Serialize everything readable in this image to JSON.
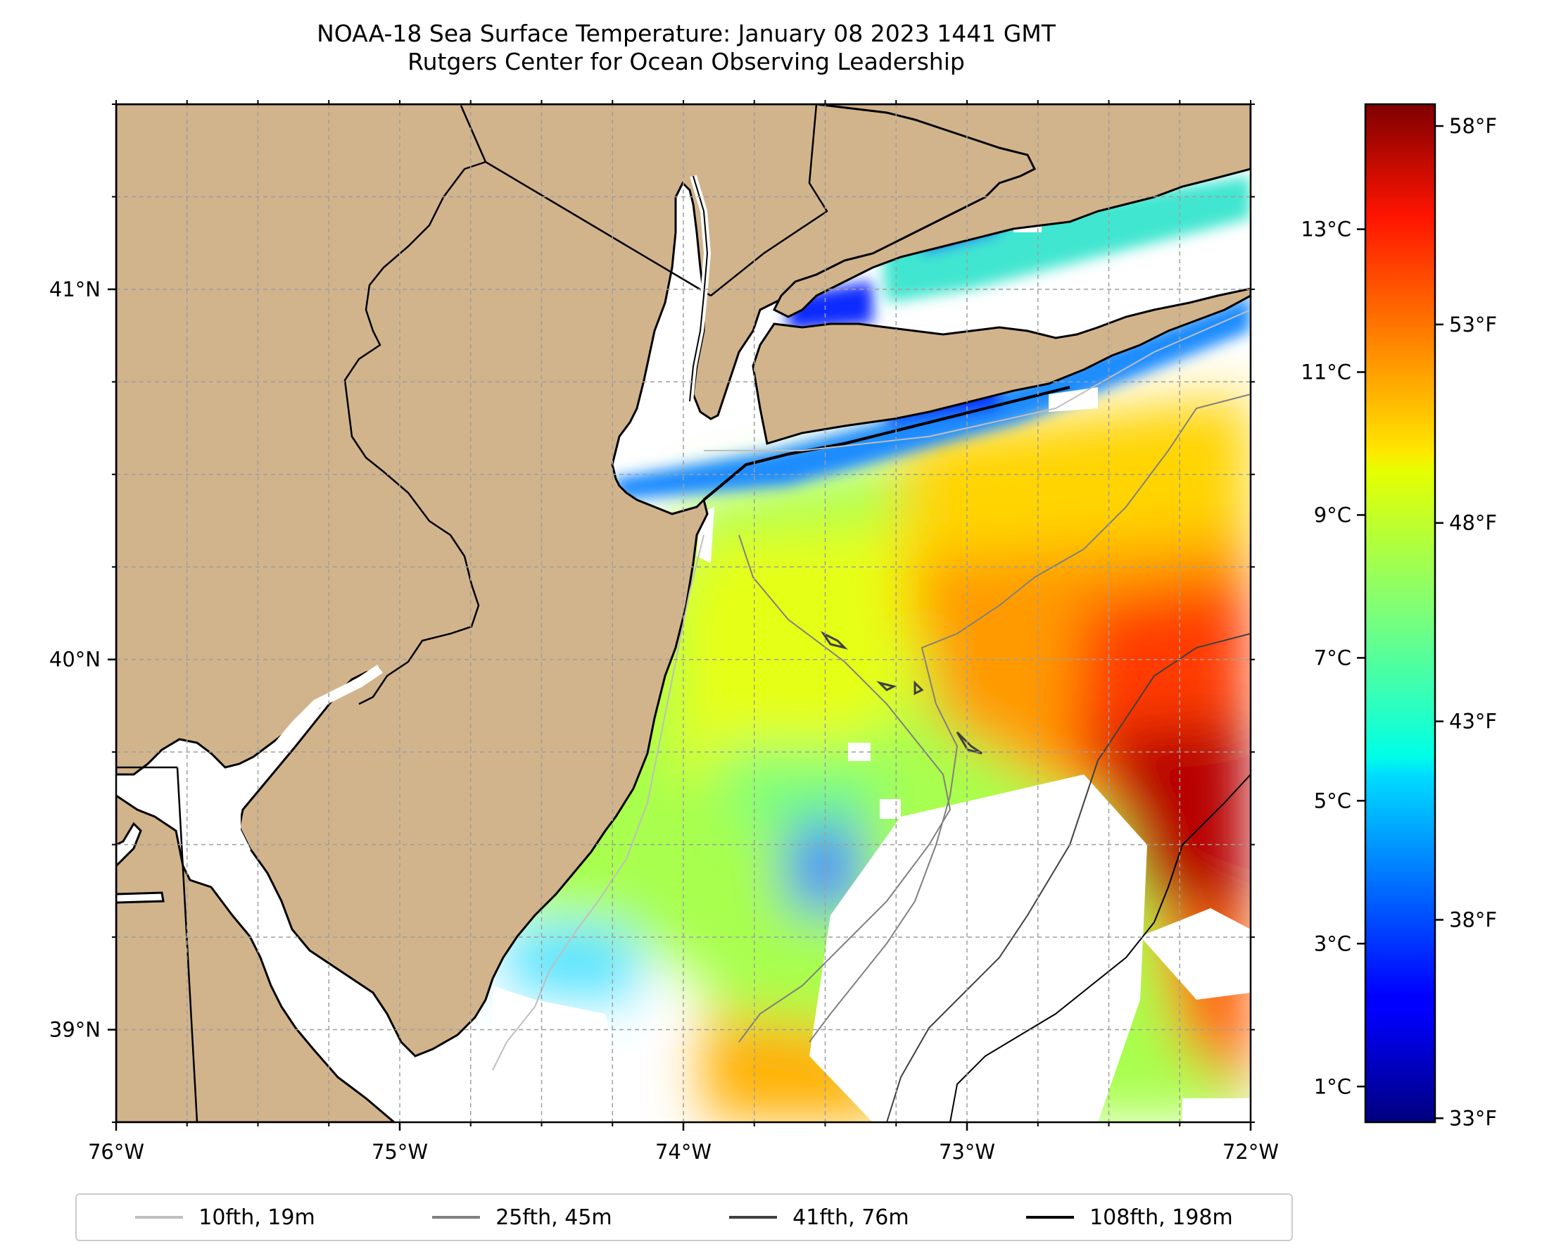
{
  "title": {
    "line1": "NOAA-18 Sea Surface Temperature: January 08 2023 1441 GMT",
    "line2": "Rutgers Center for Ocean Observing Leadership"
  },
  "map": {
    "lon_range": [
      -76,
      -72
    ],
    "lat_range": [
      38.75,
      41.5
    ],
    "x_ticks": [
      {
        "lon": -76,
        "label": "76°W"
      },
      {
        "lon": -75,
        "label": "75°W"
      },
      {
        "lon": -74,
        "label": "74°W"
      },
      {
        "lon": -73,
        "label": "73°W"
      },
      {
        "lon": -72,
        "label": "72°W"
      }
    ],
    "y_ticks": [
      {
        "lat": 41,
        "label": "41°N"
      },
      {
        "lat": 40,
        "label": "40°N"
      },
      {
        "lat": 39,
        "label": "39°N"
      }
    ],
    "gridlines": true,
    "land_color": "#D2B48C",
    "no_data_color": "#FFFFFF"
  },
  "colorbar": {
    "colormap": "jet",
    "celsius_range": [
      0.5,
      14.75
    ],
    "celsius_ticks": [
      {
        "value": 13,
        "label": "13°C"
      },
      {
        "value": 11,
        "label": "11°C"
      },
      {
        "value": 9,
        "label": "9°C"
      },
      {
        "value": 7,
        "label": "7°C"
      },
      {
        "value": 5,
        "label": "5°C"
      },
      {
        "value": 3,
        "label": "3°C"
      },
      {
        "value": 1,
        "label": "1°C"
      }
    ],
    "fahrenheit_ticks": [
      {
        "value": 58,
        "label": "58°F"
      },
      {
        "value": 53,
        "label": "53°F"
      },
      {
        "value": 48,
        "label": "48°F"
      },
      {
        "value": 43,
        "label": "43°F"
      },
      {
        "value": 38,
        "label": "38°F"
      },
      {
        "value": 33,
        "label": "33°F"
      }
    ]
  },
  "legend": {
    "placement": "bottom-center",
    "items": [
      {
        "label": "10fth, 19m",
        "color": "#BFBFBF"
      },
      {
        "label": "25fth, 45m",
        "color": "#808080"
      },
      {
        "label": "41fth, 76m",
        "color": "#404040"
      },
      {
        "label": "108fth, 198m",
        "color": "#000000"
      }
    ]
  }
}
